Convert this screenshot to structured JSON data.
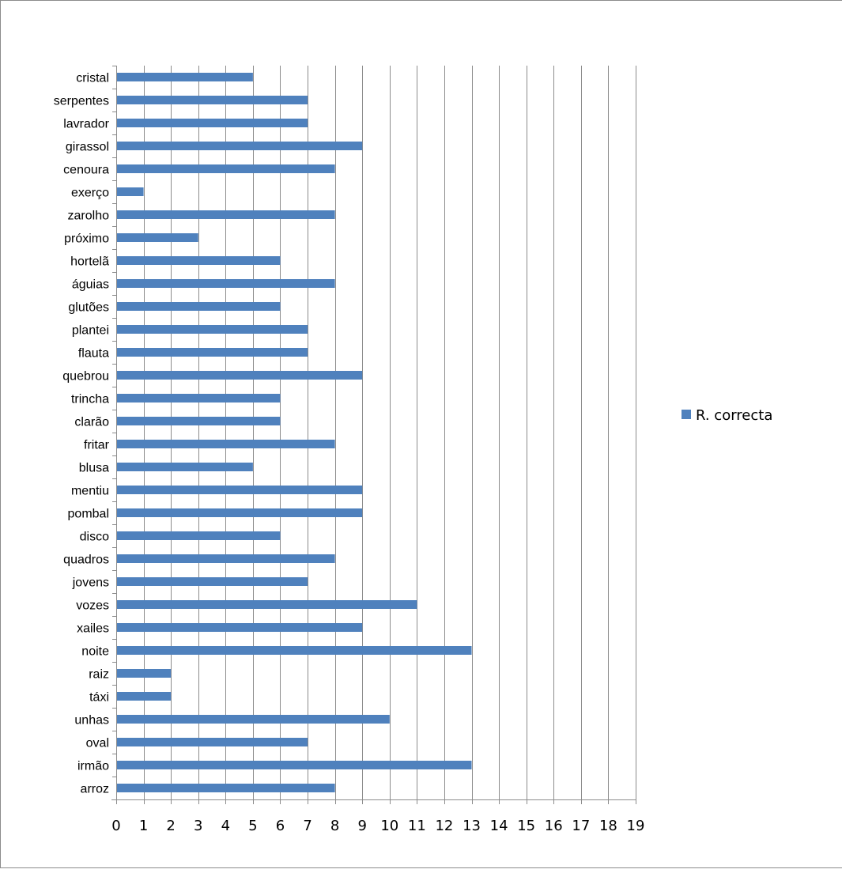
{
  "chart_data": {
    "type": "bar",
    "orientation": "horizontal",
    "categories": [
      "cristal",
      "serpentes",
      "lavrador",
      "girassol",
      "cenoura",
      "exerço",
      "zarolho",
      "próximo",
      "hortelã",
      "águias",
      "glutões",
      "plantei",
      "flauta",
      "quebrou",
      "trincha",
      "clarão",
      "fritar",
      "blusa",
      "mentiu",
      "pombal",
      "disco",
      "quadros",
      "jovens",
      "vozes",
      "xailes",
      "noite",
      "raiz",
      "táxi",
      "unhas",
      "oval",
      "irmão",
      "arroz"
    ],
    "series": [
      {
        "name": "R. correcta",
        "color": "#4f81bd",
        "values": [
          5,
          7,
          7,
          9,
          8,
          1,
          8,
          3,
          6,
          8,
          6,
          7,
          7,
          9,
          6,
          6,
          8,
          5,
          9,
          9,
          6,
          8,
          7,
          11,
          9,
          13,
          2,
          2,
          10,
          7,
          13,
          8
        ]
      }
    ],
    "xlim": [
      0,
      19
    ],
    "xticks": [
      "0",
      "1",
      "2",
      "3",
      "4",
      "5",
      "6",
      "7",
      "8",
      "9",
      "10",
      "11",
      "12",
      "13",
      "14",
      "15",
      "16",
      "17",
      "18",
      "19"
    ],
    "grid": "vertical",
    "legend_position": "right"
  }
}
